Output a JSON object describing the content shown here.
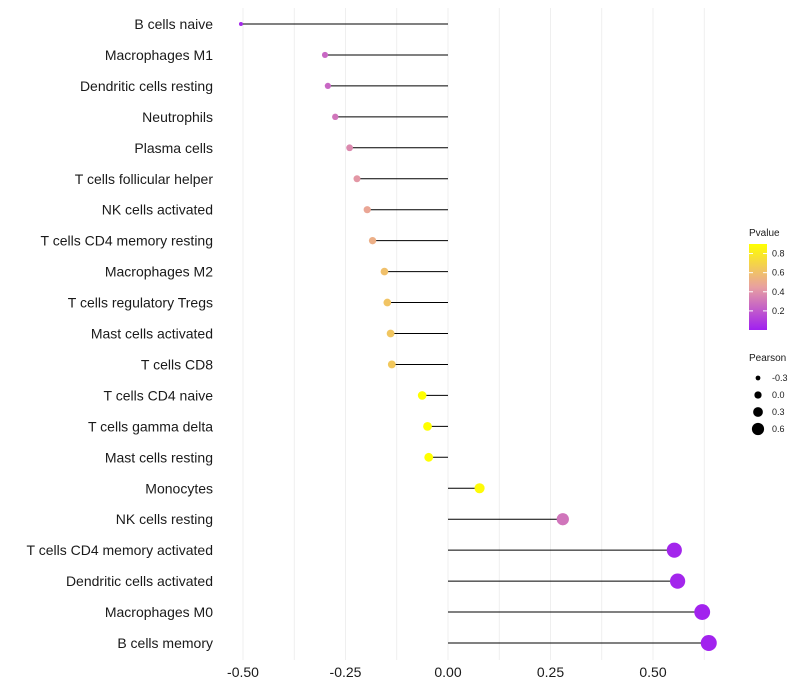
{
  "chart_data": {
    "type": "lollipop",
    "title": "",
    "xlabel": "",
    "ylabel": "",
    "xlim": [
      -0.55,
      0.68
    ],
    "x_ticks": [
      -0.5,
      -0.25,
      0.0,
      0.25,
      0.5
    ],
    "x_tick_labels": [
      "-0.50",
      "-0.25",
      "0.00",
      "0.25",
      "0.50"
    ],
    "grid": "vertical",
    "baseline": 0.0,
    "categories": [
      "B cells naive",
      "Macrophages M1",
      "Dendritic cells resting",
      "Neutrophils",
      "Plasma cells",
      "T cells follicular helper",
      "NK cells activated",
      "T cells CD4 memory resting",
      "Macrophages M2",
      "T cells regulatory  Tregs ",
      "Mast cells activated",
      "T cells CD8",
      "T cells CD4 naive",
      "T cells gamma delta",
      "Mast cells resting",
      "Monocytes",
      "NK cells resting",
      "T cells CD4 memory activated",
      "Dendritic cells activated",
      "Macrophages M0",
      "B cells memory"
    ],
    "pearson": [
      -0.505,
      -0.3,
      -0.293,
      -0.275,
      -0.24,
      -0.222,
      -0.197,
      -0.184,
      -0.155,
      -0.148,
      -0.14,
      -0.137,
      -0.063,
      -0.05,
      -0.047,
      0.077,
      0.28,
      0.552,
      0.56,
      0.62,
      0.636
    ],
    "pvalue": [
      0.03,
      0.25,
      0.25,
      0.3,
      0.37,
      0.42,
      0.48,
      0.52,
      0.6,
      0.62,
      0.63,
      0.64,
      0.93,
      0.96,
      0.97,
      0.88,
      0.3,
      0.02,
      0.02,
      0.01,
      0.01
    ],
    "legend_color": {
      "title": "Pvalue",
      "ticks": [
        0.2,
        0.4,
        0.6,
        0.8
      ],
      "tick_labels": [
        "0.2",
        "0.4",
        "0.6",
        "0.8"
      ],
      "range": [
        0.0,
        0.9
      ],
      "low_color": "#a020f0",
      "mid_color": "#e8a0a0",
      "high_color": "#ffff00",
      "position": "right"
    },
    "legend_size": {
      "title": "Pearson",
      "values": [
        -0.3,
        0.0,
        0.3,
        0.6
      ],
      "labels": [
        "-0.3",
        "0.0",
        "0.3",
        "0.6"
      ],
      "position": "right"
    }
  }
}
